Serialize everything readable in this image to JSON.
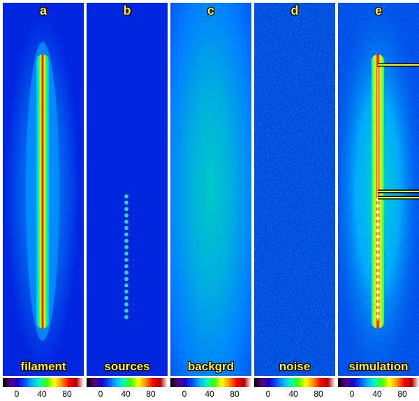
{
  "panels": [
    {
      "id": "a",
      "letter": "a",
      "caption": "filament"
    },
    {
      "id": "b",
      "letter": "b",
      "caption": "sources"
    },
    {
      "id": "c",
      "letter": "c",
      "caption": "backgrd"
    },
    {
      "id": "d",
      "letter": "d",
      "caption": "noise"
    },
    {
      "id": "e",
      "letter": "e",
      "caption": "simulation"
    }
  ],
  "colorbar": {
    "ticks": [
      "0",
      "40",
      "80"
    ],
    "tick_values": [
      0,
      40,
      80
    ],
    "colors": [
      "#000000",
      "#5a0080",
      "#1a00c8",
      "#0050ff",
      "#00b4ff",
      "#00ffb0",
      "#40ff00",
      "#ffff00",
      "#ff9000",
      "#ff0000",
      "#b00000",
      "#ffffff"
    ]
  },
  "colors": {
    "label_yellow": "#ffee33",
    "bg_blue": "#0026e0",
    "marker_yellow": "#ffff00"
  }
}
